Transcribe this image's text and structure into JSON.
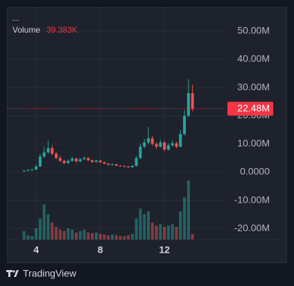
{
  "chart_data": {
    "type": "candlestick",
    "title": "...",
    "volume_name": "Volume",
    "volume_last": {
      "value": 39.383,
      "label": "39.383K"
    },
    "price_line": {
      "value": 22.48,
      "label": "22.48M"
    },
    "brand": "TradingView",
    "x": [
      3.25,
      3.5,
      3.75,
      4,
      4.25,
      4.5,
      4.75,
      5,
      5.25,
      5.5,
      5.75,
      6,
      6.25,
      6.5,
      6.75,
      7,
      7.25,
      7.5,
      7.75,
      8,
      8.25,
      8.5,
      8.75,
      9,
      9.25,
      9.5,
      9.75,
      10,
      10.25,
      10.5,
      10.75,
      11,
      11.25,
      11.5,
      11.75,
      12,
      12.25,
      12.5,
      12.75,
      13,
      13.25,
      13.5,
      13.75
    ],
    "open": [
      0.4,
      0.5,
      0.8,
      0.9,
      2.0,
      5.5,
      7.0,
      8.5,
      6.5,
      5.0,
      4.0,
      3.2,
      4.0,
      4.8,
      3.8,
      4.6,
      5.0,
      4.2,
      3.6,
      4.1,
      3.5,
      3.0,
      2.6,
      2.8,
      2.3,
      2.1,
      2.0,
      1.7,
      2.2,
      5.0,
      9.0,
      10.5,
      12.0,
      10.0,
      9.0,
      10.5,
      8.0,
      9.5,
      10.2,
      9.0,
      13.5,
      20.0,
      28.0
    ],
    "high": [
      0.8,
      1.0,
      1.2,
      2.6,
      6.5,
      9.0,
      11.2,
      9.5,
      7.2,
      5.8,
      4.4,
      4.5,
      5.4,
      5.1,
      5.0,
      5.6,
      5.3,
      4.5,
      4.5,
      4.3,
      3.7,
      3.2,
      3.1,
      2.9,
      2.5,
      2.4,
      2.2,
      2.6,
      5.8,
      10.0,
      11.8,
      16.0,
      12.8,
      10.6,
      11.5,
      11.0,
      10.2,
      11.2,
      10.8,
      15.0,
      22.0,
      33.0,
      31.0
    ],
    "low": [
      0.2,
      0.4,
      0.6,
      0.8,
      1.8,
      5.0,
      6.5,
      6.0,
      4.6,
      3.6,
      2.8,
      3.0,
      3.7,
      3.4,
      3.5,
      4.3,
      3.9,
      3.3,
      3.4,
      3.2,
      2.8,
      2.4,
      2.4,
      2.1,
      1.9,
      1.8,
      1.5,
      1.6,
      2.0,
      4.6,
      8.5,
      10.0,
      9.4,
      8.2,
      8.7,
      7.4,
      7.6,
      9.0,
      8.4,
      8.8,
      13.0,
      19.5,
      21.5
    ],
    "close": [
      0.5,
      0.8,
      0.9,
      2.0,
      5.5,
      7.0,
      8.5,
      6.5,
      5.0,
      4.0,
      3.2,
      4.0,
      4.8,
      3.8,
      4.6,
      5.0,
      4.2,
      3.6,
      4.1,
      3.5,
      3.0,
      2.6,
      2.8,
      2.3,
      2.1,
      2.0,
      1.7,
      2.2,
      5.0,
      9.0,
      10.5,
      12.0,
      10.0,
      9.0,
      10.5,
      8.0,
      9.5,
      10.2,
      9.0,
      13.5,
      20.0,
      28.0,
      22.48
    ],
    "volume": [
      60,
      30,
      25,
      80,
      150,
      250,
      180,
      120,
      90,
      70,
      60,
      80,
      70,
      50,
      60,
      70,
      50,
      45,
      50,
      40,
      35,
      30,
      35,
      30,
      25,
      25,
      30,
      40,
      150,
      220,
      180,
      200,
      120,
      100,
      110,
      90,
      100,
      110,
      90,
      200,
      300,
      420,
      39.383
    ],
    "up_color": "#26a69a",
    "down_color": "#ef5350",
    "xlim": [
      2.18,
      15.8
    ],
    "xticks": [
      4,
      8,
      12
    ],
    "ylim": [
      -23.9,
      58.6
    ],
    "yticks": [
      {
        "value": -20,
        "label": "-20.00M"
      },
      {
        "value": -10,
        "label": "-10.00M"
      },
      {
        "value": 0,
        "label": "0.0000"
      },
      {
        "value": 10,
        "label": "10.00M"
      },
      {
        "value": 20,
        "label": "20.00M"
      },
      {
        "value": 30,
        "label": "30.00M"
      },
      {
        "value": 40,
        "label": "40.00M"
      },
      {
        "value": 50,
        "label": "50.00M"
      }
    ],
    "grid": true
  }
}
